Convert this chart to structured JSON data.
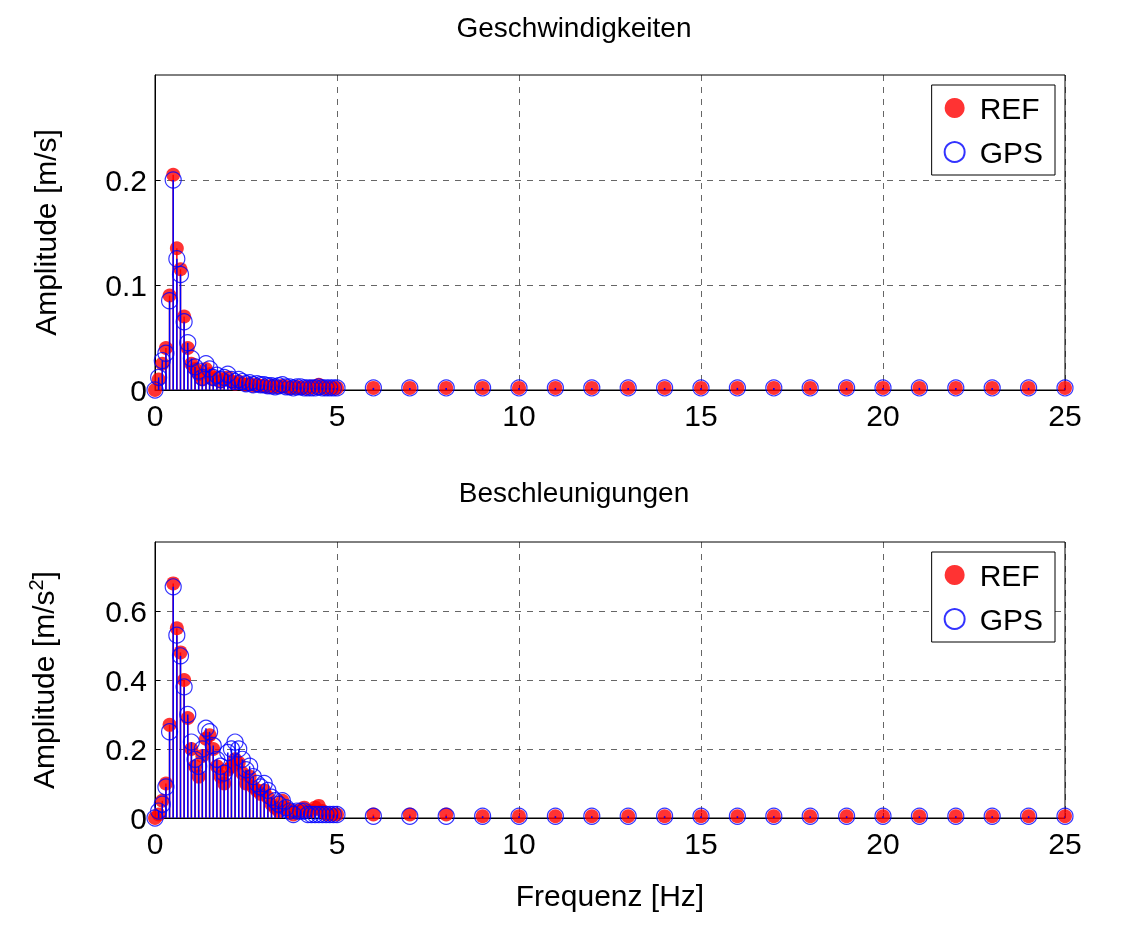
{
  "chart_data": [
    {
      "type": "lollipop",
      "title": "Geschwindigkeiten",
      "ylabel": "Amplitude [m/s]",
      "x": [
        0,
        0.1,
        0.2,
        0.3,
        0.4,
        0.5,
        0.6,
        0.7,
        0.8,
        0.9,
        1,
        1.1,
        1.2,
        1.3,
        1.4,
        1.5,
        1.6,
        1.7,
        1.8,
        1.9,
        2,
        2.1,
        2.2,
        2.3,
        2.4,
        2.5,
        2.6,
        2.7,
        2.8,
        2.9,
        3,
        3.1,
        3.2,
        3.3,
        3.4,
        3.5,
        3.6,
        3.7,
        3.8,
        3.9,
        4,
        4.1,
        4.2,
        4.3,
        4.4,
        4.5,
        4.6,
        4.7,
        4.8,
        4.9,
        5,
        6,
        7,
        8,
        9,
        10,
        11,
        12,
        13,
        14,
        15,
        16,
        17,
        18,
        19,
        20,
        21,
        22,
        23,
        24,
        25
      ],
      "series": [
        {
          "name": "REF",
          "color": "#ff0000",
          "marker": "circle",
          "values": [
            0,
            0.01,
            0.025,
            0.04,
            0.09,
            0.205,
            0.135,
            0.115,
            0.07,
            0.04,
            0.025,
            0.02,
            0.015,
            0.01,
            0.02,
            0.015,
            0.01,
            0.012,
            0.008,
            0.01,
            0.012,
            0.008,
            0.006,
            0.008,
            0.006,
            0.005,
            0.006,
            0.004,
            0.005,
            0.004,
            0.004,
            0.003,
            0.004,
            0.003,
            0.003,
            0.004,
            0.003,
            0.002,
            0.002,
            0.003,
            0.002,
            0.002,
            0.002,
            0.003,
            0.002,
            0.005,
            0.002,
            0.002,
            0.002,
            0.002,
            0.002,
            0.002,
            0.002,
            0.002,
            0.002,
            0.002,
            0.002,
            0.002,
            0.002,
            0.002,
            0.002,
            0.002,
            0.002,
            0.002,
            0.002,
            0.002,
            0.002,
            0.002,
            0.002,
            0.002,
            0.002
          ]
        },
        {
          "name": "GPS",
          "color": "#0000ff",
          "marker": "circle",
          "values": [
            0,
            0.012,
            0.028,
            0.035,
            0.085,
            0.2,
            0.125,
            0.11,
            0.065,
            0.045,
            0.03,
            0.022,
            0.018,
            0.012,
            0.025,
            0.02,
            0.012,
            0.014,
            0.01,
            0.012,
            0.015,
            0.01,
            0.008,
            0.01,
            0.008,
            0.006,
            0.007,
            0.005,
            0.006,
            0.005,
            0.005,
            0.004,
            0.004,
            0.003,
            0.004,
            0.005,
            0.003,
            0.003,
            0.002,
            0.003,
            0.003,
            0.002,
            0.002,
            0.002,
            0.002,
            0.003,
            0.002,
            0.002,
            0.002,
            0.002,
            0.002,
            0.002,
            0.002,
            0.002,
            0.002,
            0.002,
            0.002,
            0.002,
            0.002,
            0.002,
            0.002,
            0.002,
            0.002,
            0.002,
            0.002,
            0.002,
            0.002,
            0.002,
            0.002,
            0.002,
            0.002
          ]
        }
      ],
      "xlim": [
        0,
        25
      ],
      "xticks": [
        0,
        5,
        10,
        15,
        20,
        25
      ],
      "ylim": [
        0,
        0.3
      ],
      "yticks": [
        0,
        0.1,
        0.2
      ],
      "grid": true,
      "legend": "top right",
      "line_style": "solid"
    },
    {
      "type": "lollipop",
      "title": "Beschleunigungen",
      "xlabel": "Frequenz [Hz]",
      "ylabel": "Amplitude [m/s$^{2}$]",
      "x": [
        0,
        0.1,
        0.2,
        0.3,
        0.4,
        0.5,
        0.6,
        0.7,
        0.8,
        0.9,
        1,
        1.1,
        1.2,
        1.3,
        1.4,
        1.5,
        1.6,
        1.7,
        1.8,
        1.9,
        2,
        2.1,
        2.2,
        2.3,
        2.4,
        2.5,
        2.6,
        2.7,
        2.8,
        2.9,
        3,
        3.1,
        3.2,
        3.3,
        3.4,
        3.5,
        3.6,
        3.7,
        3.8,
        3.9,
        4,
        4.1,
        4.2,
        4.3,
        4.4,
        4.5,
        4.6,
        4.7,
        4.8,
        4.9,
        5,
        6,
        7,
        8,
        9,
        10,
        11,
        12,
        13,
        14,
        15,
        16,
        17,
        18,
        19,
        20,
        21,
        22,
        23,
        24,
        25
      ],
      "series": [
        {
          "name": "REF",
          "color": "#ff0000",
          "marker": "circle",
          "values": [
            0,
            0.01,
            0.05,
            0.1,
            0.27,
            0.68,
            0.55,
            0.48,
            0.4,
            0.29,
            0.2,
            0.15,
            0.12,
            0.18,
            0.23,
            0.24,
            0.2,
            0.15,
            0.12,
            0.1,
            0.14,
            0.15,
            0.17,
            0.16,
            0.13,
            0.1,
            0.12,
            0.09,
            0.08,
            0.07,
            0.08,
            0.06,
            0.04,
            0.03,
            0.02,
            0.05,
            0.03,
            0.02,
            0.01,
            0.02,
            0.02,
            0.03,
            0.02,
            0.02,
            0.03,
            0.035,
            0.02,
            0.01,
            0.01,
            0.01,
            0.01,
            0.01,
            0.01,
            0.01,
            0.005,
            0.005,
            0.005,
            0.005,
            0.005,
            0.005,
            0.005,
            0.005,
            0.005,
            0.005,
            0.005,
            0.005,
            0.005,
            0.005,
            0.005,
            0.005,
            0.005
          ]
        },
        {
          "name": "GPS",
          "color": "#0000ff",
          "marker": "circle",
          "values": [
            0,
            0.02,
            0.04,
            0.09,
            0.25,
            0.67,
            0.53,
            0.47,
            0.38,
            0.3,
            0.22,
            0.17,
            0.15,
            0.2,
            0.26,
            0.25,
            0.21,
            0.17,
            0.15,
            0.13,
            0.19,
            0.2,
            0.22,
            0.2,
            0.17,
            0.14,
            0.15,
            0.12,
            0.1,
            0.09,
            0.1,
            0.08,
            0.06,
            0.05,
            0.04,
            0.05,
            0.03,
            0.02,
            0.01,
            0.02,
            0.02,
            0.02,
            0.01,
            0.01,
            0.01,
            0.01,
            0.01,
            0.01,
            0.01,
            0.01,
            0.01,
            0.005,
            0.005,
            0.005,
            0.005,
            0.005,
            0.005,
            0.005,
            0.005,
            0.005,
            0.005,
            0.005,
            0.005,
            0.005,
            0.005,
            0.005,
            0.005,
            0.005,
            0.005,
            0.005,
            0.005
          ]
        }
      ],
      "xlim": [
        0,
        25
      ],
      "xticks": [
        0,
        5,
        10,
        15,
        20,
        25
      ],
      "ylim": [
        0,
        0.8
      ],
      "yticks": [
        0,
        0.2,
        0.4,
        0.6
      ],
      "grid": true,
      "legend": "top right",
      "line_style": "solid"
    }
  ]
}
